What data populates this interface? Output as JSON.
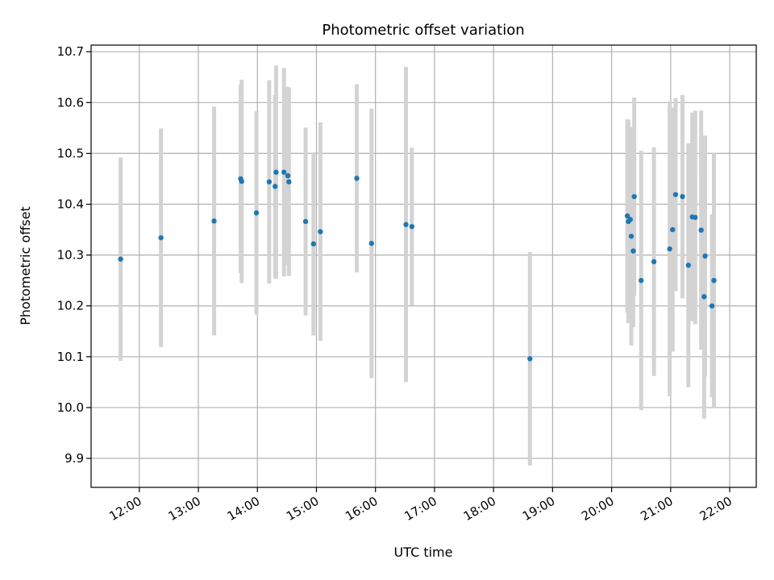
{
  "chart_data": {
    "type": "scatter",
    "title": "Photometric offset variation",
    "xlabel": "UTC time",
    "ylabel": "Photometric offset",
    "x_ticks": [
      "12:00",
      "13:00",
      "14:00",
      "15:00",
      "16:00",
      "17:00",
      "18:00",
      "19:00",
      "20:00",
      "21:00",
      "22:00"
    ],
    "y_ticks": [
      "9.9",
      "10.0",
      "10.1",
      "10.2",
      "10.3",
      "10.4",
      "10.5",
      "10.6",
      "10.7"
    ],
    "xlim": [
      "11:11",
      "22:27"
    ],
    "ylim": [
      9.843,
      10.713
    ],
    "grid": true,
    "colors": {
      "point": "#1f77b4",
      "errorbar": "#d3d3d3",
      "grid": "#b0b0b0"
    },
    "series": [
      {
        "x": [
          "11:41",
          "12:22",
          "13:16",
          "13:43",
          "13:44",
          "13:59",
          "14:12",
          "14:18",
          "14:19",
          "14:27",
          "14:31",
          "14:32",
          "14:49",
          "14:57",
          "15:04",
          "15:41",
          "15:56",
          "16:31",
          "16:37",
          "18:37",
          "20:16",
          "20:17",
          "20:19",
          "20:20",
          "20:22",
          "20:23",
          "20:30",
          "20:43",
          "20:59",
          "21:02",
          "21:05",
          "21:12",
          "21:18",
          "21:22",
          "21:25",
          "21:31",
          "21:34",
          "21:35",
          "21:42",
          "21:44"
        ],
        "y": [
          10.292,
          10.334,
          10.367,
          10.45,
          10.445,
          10.383,
          10.444,
          10.435,
          10.463,
          10.463,
          10.456,
          10.444,
          10.366,
          10.322,
          10.346,
          10.451,
          10.323,
          10.36,
          10.356,
          10.096,
          10.377,
          10.366,
          10.37,
          10.337,
          10.308,
          10.415,
          10.25,
          10.287,
          10.312,
          10.35,
          10.419,
          10.415,
          10.28,
          10.375,
          10.374,
          10.349,
          10.218,
          10.298,
          10.2,
          10.25
        ],
        "yerr": [
          0.2,
          0.215,
          0.225,
          0.185,
          0.2,
          0.2,
          0.2,
          0.18,
          0.21,
          0.205,
          0.175,
          0.185,
          0.185,
          0.18,
          0.215,
          0.185,
          0.265,
          0.31,
          0.155,
          0.21,
          0.19,
          0.2,
          0.17,
          0.215,
          0.15,
          0.195,
          0.255,
          0.225,
          0.29,
          0.24,
          0.19,
          0.2,
          0.24,
          0.205,
          0.21,
          0.235,
          0.24,
          0.237,
          0.18,
          0.25
        ]
      }
    ]
  }
}
